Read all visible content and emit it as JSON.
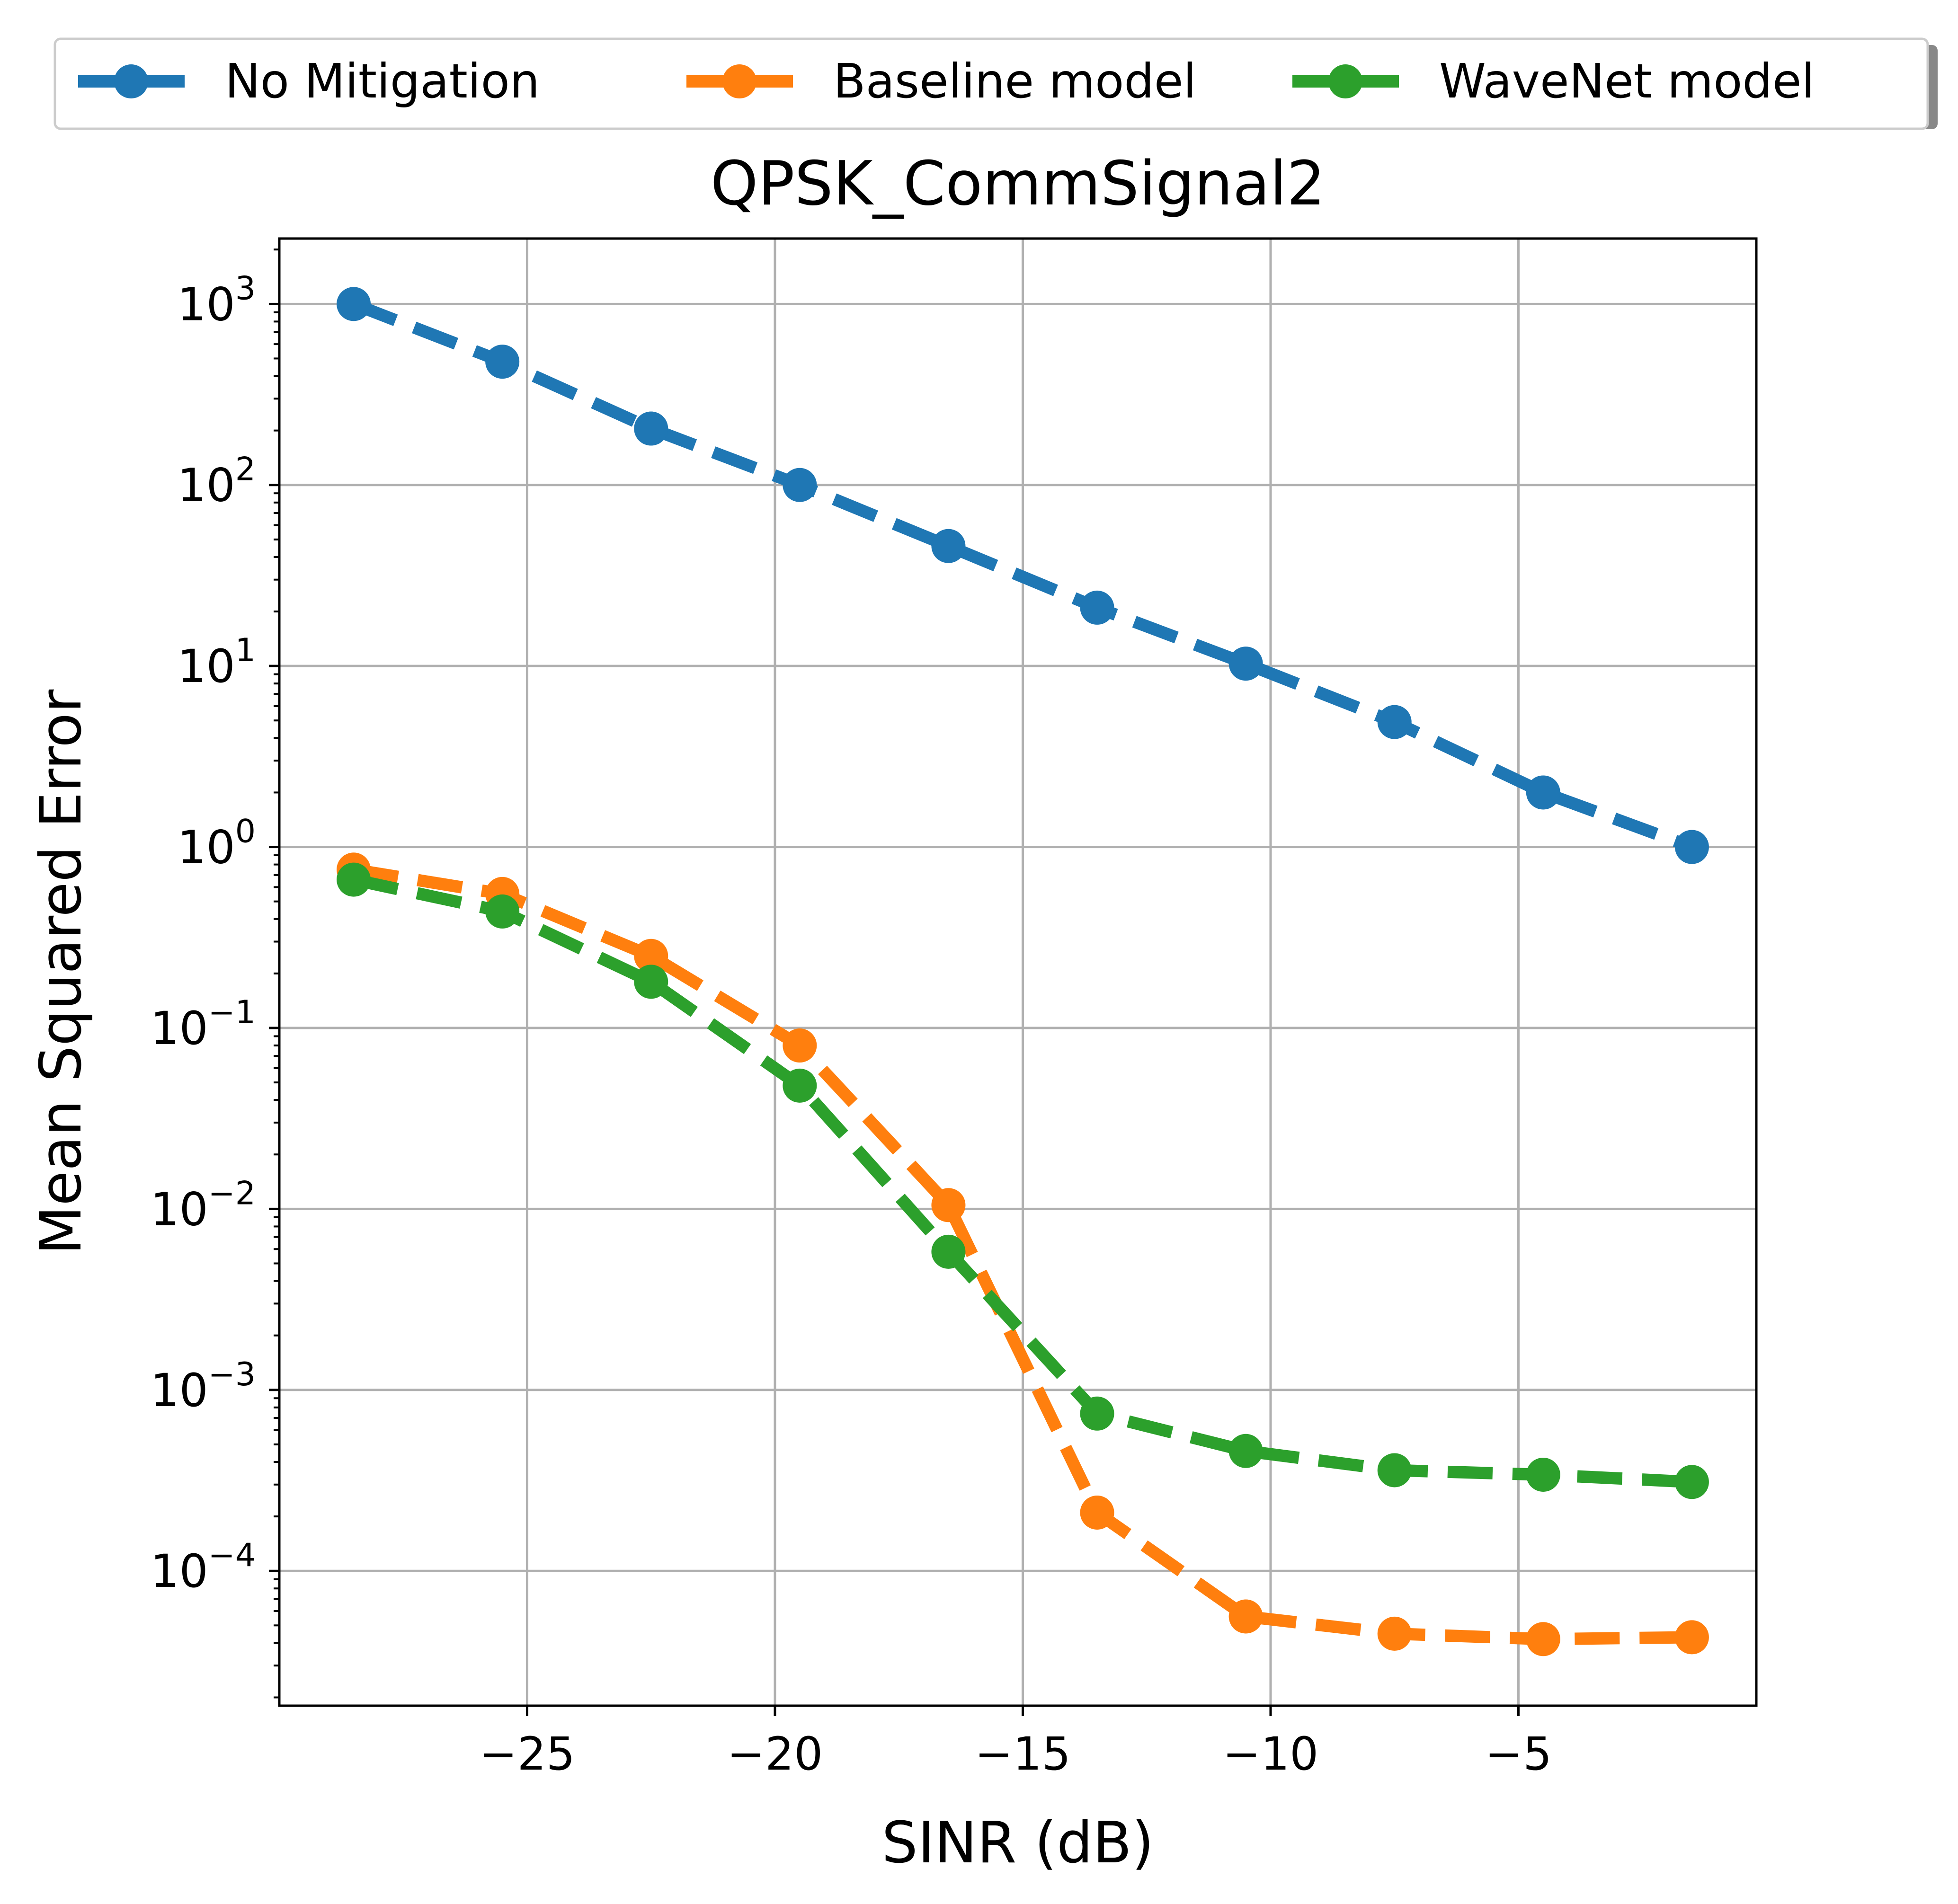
{
  "chart_data": {
    "type": "line",
    "title": "QPSK_CommSignal2",
    "xlabel": "SINR (dB)",
    "ylabel": "Mean Squared Error",
    "yscale": "log",
    "xlim": [
      -30,
      -0.2
    ],
    "ylim": [
      1.8e-05,
      2300
    ],
    "grid": true,
    "legend_position": "top, above plot, horizontal",
    "x_ticks": [
      {
        "value": -25,
        "label": "−25"
      },
      {
        "value": -20,
        "label": "−20"
      },
      {
        "value": -15,
        "label": "−15"
      },
      {
        "value": -10,
        "label": "−10"
      },
      {
        "value": -5,
        "label": "−5"
      }
    ],
    "y_ticks": [
      {
        "value": 1000,
        "base": "10",
        "exp": "3"
      },
      {
        "value": 100,
        "base": "10",
        "exp": "2"
      },
      {
        "value": 10,
        "base": "10",
        "exp": "1"
      },
      {
        "value": 1,
        "base": "10",
        "exp": "0"
      },
      {
        "value": 0.1,
        "base": "10",
        "exp": "−1"
      },
      {
        "value": 0.01,
        "base": "10",
        "exp": "−2"
      },
      {
        "value": 0.001,
        "base": "10",
        "exp": "−3"
      },
      {
        "value": 0.0001,
        "base": "10",
        "exp": "−4"
      }
    ],
    "x": [
      -28.5,
      -25.5,
      -22.5,
      -19.5,
      -16.5,
      -13.5,
      -10.5,
      -7.5,
      -4.5,
      -1.5
    ],
    "series": [
      {
        "name": "No Mitigation",
        "color": "#1f77b4",
        "values": [
          1000,
          480,
          205,
          100,
          46,
          21,
          10.3,
          4.9,
          2.0,
          1.0
        ]
      },
      {
        "name": "Baseline model",
        "color": "#ff7f0e",
        "values": [
          0.75,
          0.55,
          0.25,
          0.08,
          0.0105,
          0.00021,
          5.6e-05,
          4.5e-05,
          4.2e-05,
          4.3e-05
        ]
      },
      {
        "name": "WaveNet model",
        "color": "#2ca02c",
        "values": [
          0.66,
          0.44,
          0.18,
          0.048,
          0.0058,
          0.00074,
          0.00046,
          0.00036,
          0.00034,
          0.00031
        ]
      }
    ]
  }
}
